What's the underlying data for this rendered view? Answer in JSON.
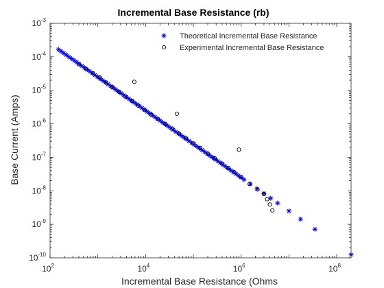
{
  "chart_data": {
    "type": "scatter",
    "title": "Incremental Base Resistance (rb)",
    "xlabel": "Incremental Base Resistance (Ohms",
    "ylabel": "Base Current (Amps)",
    "xscale": "log",
    "yscale": "log",
    "xlim": [
      100,
      200000000
    ],
    "ylim": [
      1e-10,
      0.001
    ],
    "x_ticks": [
      {
        "base": "10",
        "exp": "2",
        "value": 100
      },
      {
        "base": "10",
        "exp": "4",
        "value": 10000
      },
      {
        "base": "10",
        "exp": "6",
        "value": 1000000
      },
      {
        "base": "10",
        "exp": "8",
        "value": 100000000
      }
    ],
    "y_ticks": [
      {
        "base": "10",
        "exp": "-3",
        "value": 0.001
      },
      {
        "base": "10",
        "exp": "-4",
        "value": 0.0001
      },
      {
        "base": "10",
        "exp": "-5",
        "value": 1e-05
      },
      {
        "base": "10",
        "exp": "-6",
        "value": 1e-06
      },
      {
        "base": "10",
        "exp": "-7",
        "value": 1e-07
      },
      {
        "base": "10",
        "exp": "-8",
        "value": 1e-08
      },
      {
        "base": "10",
        "exp": "-9",
        "value": 1e-09
      },
      {
        "base": "10",
        "exp": "-10",
        "value": 1e-10
      }
    ],
    "grid": false,
    "box": true,
    "legend_position": "top-right",
    "series": [
      {
        "name": "Theoretical Incremental Base Resistance",
        "marker": "asterisk",
        "color": "#0000ff",
        "points": [
          [
            150,
            0.000166
          ],
          [
            170,
            0.000146
          ],
          [
            193,
            0.000129
          ],
          [
            219,
            0.000114
          ],
          [
            248,
            0.0001
          ],
          [
            281,
            8.84e-05
          ],
          [
            319,
            7.8e-05
          ],
          [
            362,
            6.88e-05
          ],
          [
            410,
            6.06e-05
          ],
          [
            465,
            5.35e-05
          ],
          [
            527,
            4.72e-05
          ],
          [
            598,
            4.16e-05
          ],
          [
            678,
            3.67e-05
          ],
          [
            769,
            3.24e-05
          ],
          [
            872,
            2.86e-05
          ],
          [
            989,
            2.52e-05
          ],
          [
            1121,
            2.22e-05
          ],
          [
            1272,
            1.96e-05
          ],
          [
            1442,
            1.73e-05
          ],
          [
            1635,
            1.52e-05
          ],
          [
            1854,
            1.34e-05
          ],
          [
            2103,
            1.19e-05
          ],
          [
            2385,
            1.05e-05
          ],
          [
            2704,
            9.23e-06
          ],
          [
            3067,
            8.14e-06
          ],
          [
            3478,
            7.18e-06
          ],
          [
            3944,
            6.33e-06
          ],
          [
            4472,
            5.58e-06
          ],
          [
            5072,
            4.92e-06
          ],
          [
            5751,
            4.34e-06
          ],
          [
            6522,
            3.83e-06
          ],
          [
            7397,
            3.38e-06
          ],
          [
            8388,
            2.98e-06
          ],
          [
            9512,
            2.62e-06
          ],
          [
            10787,
            2.31e-06
          ],
          [
            12233,
            2.04e-06
          ],
          [
            13873,
            1.8e-06
          ],
          [
            15732,
            1.59e-06
          ],
          [
            17841,
            1.4e-06
          ],
          [
            20232,
            1.24e-06
          ],
          [
            22944,
            1.09e-06
          ],
          [
            26019,
            9.61e-07
          ],
          [
            29507,
            8.47e-07
          ],
          [
            33462,
            7.47e-07
          ],
          [
            37947,
            6.59e-07
          ],
          [
            43033,
            5.81e-07
          ],
          [
            48801,
            5.12e-07
          ],
          [
            55342,
            4.52e-07
          ],
          [
            62760,
            3.98e-07
          ],
          [
            71172,
            3.51e-07
          ],
          [
            80711,
            3.1e-07
          ],
          [
            91529,
            2.73e-07
          ],
          [
            103797,
            2.41e-07
          ],
          [
            117709,
            2.12e-07
          ],
          [
            133486,
            1.87e-07
          ],
          [
            151378,
            1.65e-07
          ],
          [
            171668,
            1.46e-07
          ],
          [
            194677,
            1.28e-07
          ],
          [
            220770,
            1.13e-07
          ],
          [
            250360,
            9.99e-08
          ],
          [
            283917,
            8.81e-08
          ],
          [
            321972,
            7.77e-08
          ],
          [
            365127,
            6.85e-08
          ],
          [
            414066,
            6.04e-08
          ],
          [
            469565,
            5.33e-08
          ],
          [
            532502,
            4.7e-08
          ],
          [
            603876,
            4.14e-08
          ],
          [
            684815,
            3.65e-08
          ],
          [
            776604,
            3.22e-08
          ],
          [
            880696,
            2.84e-08
          ],
          [
            998738,
            2.5e-08
          ],
          [
            1150000,
            2.17e-08
          ],
          [
            1550000,
            1.61e-08
          ],
          [
            2150000,
            1.16e-08
          ],
          [
            3000000,
            8.33e-09
          ],
          [
            4150000,
            6.02e-09
          ],
          [
            5800000,
            4.31e-09
          ],
          [
            10000000,
            2.5e-09
          ],
          [
            17500000,
            1.43e-09
          ],
          [
            35000000,
            7.14e-10
          ],
          [
            200000000,
            1.25e-10
          ]
        ]
      },
      {
        "name": "Experimental Incremental Base Resistance",
        "marker": "circle",
        "color": "#000000",
        "points": [
          [
            400,
            6e-05
          ],
          [
            560,
            4.4e-05
          ],
          [
            800,
            3.2e-05
          ],
          [
            1100,
            2.4e-05
          ],
          [
            1500,
            1.7e-05
          ],
          [
            2000,
            1.25e-05
          ],
          [
            2800,
            9e-06
          ],
          [
            3800,
            6.5e-06
          ],
          [
            5200,
            4.8e-06
          ],
          [
            5800,
            1.8e-05
          ],
          [
            7000,
            3.5e-06
          ],
          [
            9500,
            2.6e-06
          ],
          [
            13000,
            1.9e-06
          ],
          [
            18000,
            1.4e-06
          ],
          [
            26000,
            1e-06
          ],
          [
            36000,
            7.2e-07
          ],
          [
            45000,
            2e-06
          ],
          [
            50000,
            5.2e-07
          ],
          [
            70000,
            3.7e-07
          ],
          [
            100000,
            2.6e-07
          ],
          [
            140000,
            1.9e-07
          ],
          [
            200000,
            1.3e-07
          ],
          [
            280000,
            9.3e-08
          ],
          [
            400000,
            6.5e-08
          ],
          [
            540000,
            4.8e-08
          ],
          [
            720000,
            3.6e-08
          ],
          [
            900000,
            1.7e-07
          ],
          [
            1000000,
            2.6e-08
          ],
          [
            1500000,
            1.6e-08
          ],
          [
            2200000,
            1.1e-08
          ],
          [
            3000000,
            8e-09
          ],
          [
            3500000,
            5.6e-09
          ],
          [
            4000000,
            3.9e-09
          ],
          [
            4500000,
            2.6e-09
          ]
        ]
      }
    ]
  }
}
